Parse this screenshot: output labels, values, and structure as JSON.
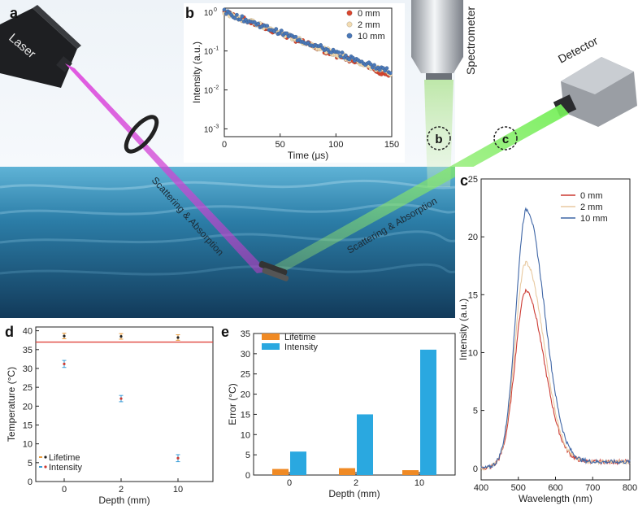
{
  "panel_labels": {
    "a": "a",
    "b": "b",
    "c": "c",
    "d": "d",
    "e": "e"
  },
  "scene": {
    "laser_label": "Laser",
    "spectrometer_label": "Spectrometer",
    "detector_label": "Detector",
    "scatter_left": "Scattering & Absorption",
    "scatter_right": "Scattering & Absorption",
    "circle_b": "b",
    "circle_c": "c",
    "colors": {
      "laser_beam": "#d84fd8",
      "emission_beam": "#7ee05a",
      "water": "#2f7fa5"
    }
  },
  "chart_data": [
    {
      "id": "b",
      "type": "scatter",
      "xlabel": "Time (μs)",
      "ylabel": "Intensity (a.u.)",
      "xlim": [
        0,
        150
      ],
      "ylim_log10": [
        -3.2,
        0.1
      ],
      "yscale": "log",
      "xticks": [
        0,
        50,
        100,
        150
      ],
      "yticks": [
        {
          "exp": 0,
          "label": "10",
          "sup": "0"
        },
        {
          "exp": -1,
          "label": "10",
          "sup": "-1"
        },
        {
          "exp": -2,
          "label": "10",
          "sup": "-2"
        },
        {
          "exp": -3,
          "label": "10",
          "sup": "-3"
        }
      ],
      "legend_position": "top-right",
      "series": [
        {
          "name": "0 mm",
          "color": "#d9462f",
          "decay_per_us": 0.0255,
          "floor": 0.00045
        },
        {
          "name": "2 mm",
          "color": "#f3dcb2",
          "decay_per_us": 0.0248,
          "floor": 0.00055
        },
        {
          "name": "10 mm",
          "color": "#4a78b8",
          "decay_per_us": 0.0242,
          "floor": 0.0009
        }
      ]
    },
    {
      "id": "c",
      "type": "line",
      "xlabel": "Wavelength (nm)",
      "ylabel": "Intensity (a.u.)",
      "xlim": [
        400,
        800
      ],
      "ylim": [
        -1,
        25
      ],
      "xticks": [
        400,
        500,
        600,
        700,
        800
      ],
      "yticks": [
        0,
        5,
        10,
        15,
        20,
        25
      ],
      "legend_position": "top-right",
      "series": [
        {
          "name": "0 mm",
          "color": "#cc3a32",
          "peak_x": 520,
          "peak_y": 14.8,
          "end_y": 0.7
        },
        {
          "name": "2 mm",
          "color": "#e8c9a0",
          "peak_x": 520,
          "peak_y": 17.2,
          "end_y": 0.7
        },
        {
          "name": "10 mm",
          "color": "#3f66a6",
          "peak_x": 522,
          "peak_y": 21.8,
          "end_y": 0.7
        }
      ]
    },
    {
      "id": "d",
      "type": "scatter",
      "xlabel": "Depth (mm)",
      "ylabel": "Temperature (°C)",
      "ylim": [
        0,
        41
      ],
      "categories": [
        "0",
        "2",
        "10"
      ],
      "yticks": [
        0,
        5,
        10,
        15,
        20,
        25,
        30,
        35,
        40
      ],
      "reference_line": {
        "value": 37,
        "color": "#e0443d"
      },
      "legend_position": "bottom-left",
      "series": [
        {
          "name": "Lifetime",
          "color": "#e89a3a",
          "marker_color": "#222",
          "values": [
            38.6,
            38.5,
            38.2
          ],
          "errors": [
            0.3,
            0.3,
            0.3
          ]
        },
        {
          "name": "Intensity",
          "color": "#3a9ed8",
          "marker_color": "#cc3a32",
          "values": [
            31.2,
            22.0,
            6.2
          ],
          "errors": [
            0.5,
            0.4,
            0.5
          ]
        }
      ]
    },
    {
      "id": "e",
      "type": "bar",
      "xlabel": "Depth (mm)",
      "ylabel": "Error (°C)",
      "ylim": [
        0,
        35
      ],
      "categories": [
        "0",
        "2",
        "10"
      ],
      "yticks": [
        0,
        5,
        10,
        15,
        20,
        25,
        30,
        35
      ],
      "legend_position": "top-left",
      "series": [
        {
          "name": "Lifetime",
          "color": "#f08a24",
          "values": [
            1.5,
            1.7,
            1.2
          ]
        },
        {
          "name": "Intensity",
          "color": "#2aa8e0",
          "values": [
            5.8,
            15.0,
            31.0
          ]
        }
      ]
    }
  ]
}
